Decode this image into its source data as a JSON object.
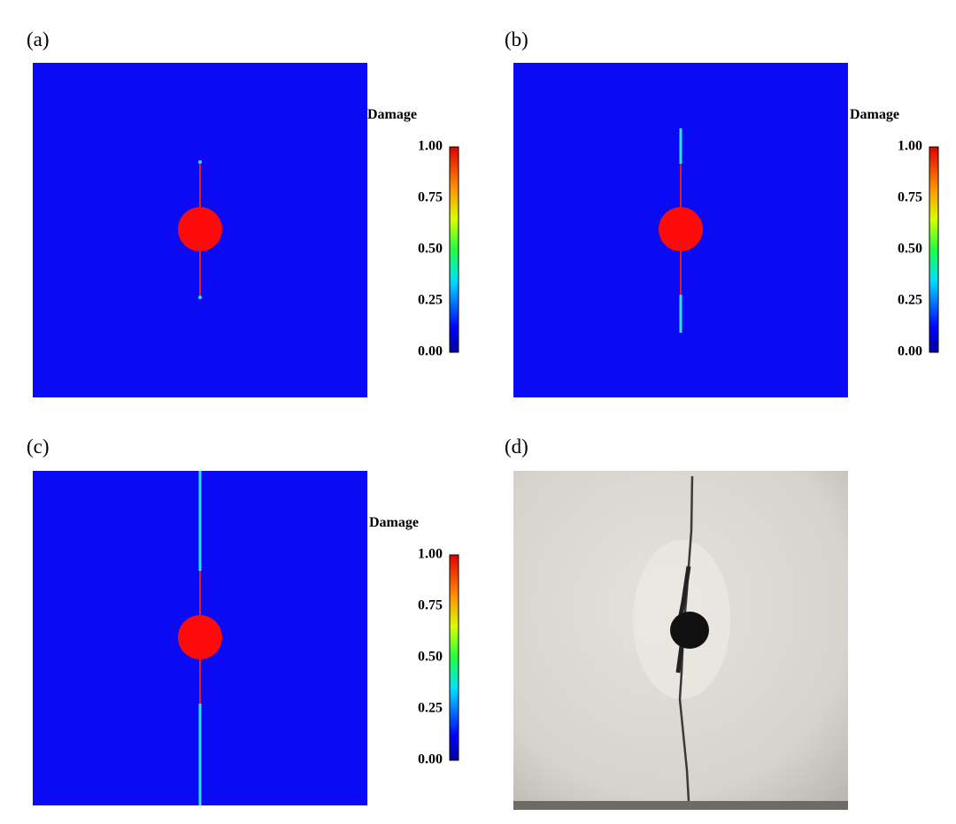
{
  "panels": [
    {
      "label": "(a)",
      "colorbar": {
        "title": "Damage",
        "ticks": [
          "1.00",
          "0.75",
          "0.50",
          "0.25",
          "0.00"
        ]
      }
    },
    {
      "label": "(b)",
      "colorbar": {
        "title": "Damage",
        "ticks": [
          "1.00",
          "0.75",
          "0.50",
          "0.25",
          "0.00"
        ]
      }
    },
    {
      "label": "(c)",
      "colorbar": {
        "title": "Damage",
        "ticks": [
          "1.00",
          "0.75",
          "0.50",
          "0.25",
          "0.00"
        ]
      }
    },
    {
      "label": "(d)"
    }
  ]
}
